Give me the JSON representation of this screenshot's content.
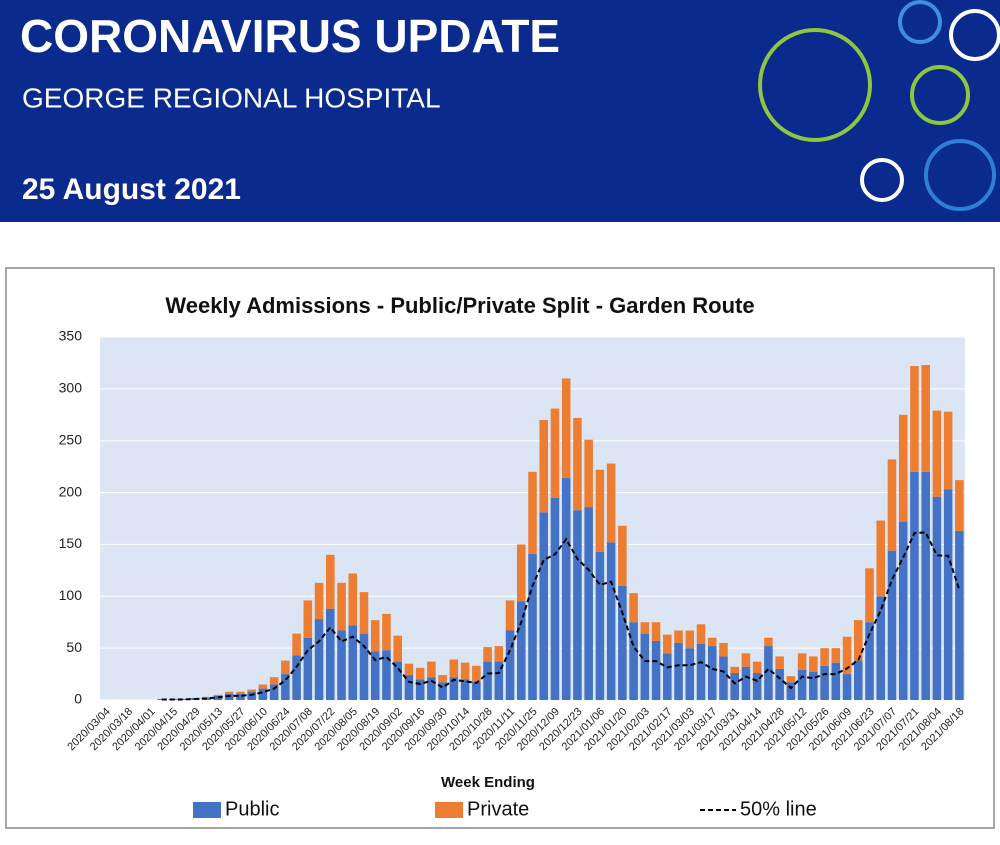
{
  "header": {
    "title": "CORONAVIRUS UPDATE",
    "subtitle": "GEORGE REGIONAL HOSPITAL",
    "date": "25 August 2021"
  },
  "chart_data": {
    "type": "bar",
    "stacked": true,
    "title": "Weekly Admissions - Public/Private Split - Garden Route",
    "x_label": "Week Ending",
    "categories": [
      "2020/03/04",
      null,
      "2020/03/18",
      null,
      "2020/04/01",
      null,
      "2020/04/15",
      null,
      "2020/04/29",
      null,
      "2020/05/13",
      null,
      "2020/05/27",
      null,
      "2020/06/10",
      null,
      "2020/06/24",
      null,
      "2020/07/08",
      null,
      "2020/07/22",
      null,
      "2020/08/05",
      null,
      "2020/08/19",
      null,
      "2020/09/02",
      null,
      "2020/09/16",
      null,
      "2020/09/30",
      null,
      "2020/10/14",
      null,
      "2020/10/28",
      null,
      "2020/11/11",
      null,
      "2020/11/25",
      null,
      "2020/12/09",
      null,
      "2020/12/23",
      null,
      "2021/01/06",
      null,
      "2021/01/20",
      null,
      "2021/02/03",
      null,
      "2021/02/17",
      null,
      "2021/03/03",
      null,
      "2021/03/17",
      null,
      "2021/03/31",
      null,
      "2021/04/14",
      null,
      "2021/04/28",
      null,
      "2021/05/12",
      null,
      "2021/05/26",
      null,
      "2021/06/09",
      null,
      "2021/06/23",
      null,
      "2021/07/07",
      null,
      "2021/07/21",
      null,
      "2021/08/04",
      null,
      "2021/08/18"
    ],
    "series": [
      {
        "name": "Public",
        "color": "#4472c4",
        "values": [
          0,
          0,
          0,
          0,
          0,
          1,
          1,
          1,
          2,
          2,
          4,
          6,
          6,
          8,
          11,
          15,
          25,
          43,
          60,
          78,
          88,
          67,
          72,
          64,
          47,
          48,
          37,
          24,
          20,
          22,
          17,
          22,
          20,
          18,
          37,
          37,
          67,
          95,
          141,
          181,
          195,
          214,
          183,
          186,
          143,
          152,
          110,
          75,
          64,
          57,
          45,
          55,
          50,
          54,
          52,
          42,
          26,
          32,
          26,
          52,
          30,
          17,
          29,
          27,
          33,
          36,
          25,
          38,
          75,
          100,
          144,
          172,
          220,
          220,
          196,
          203,
          163
        ]
      },
      {
        "name": "Private",
        "color": "#ed7d31",
        "values": [
          0,
          0,
          0,
          0,
          0,
          0,
          0,
          0,
          0,
          1,
          1,
          2,
          2,
          2,
          4,
          7,
          13,
          21,
          36,
          35,
          52,
          46,
          50,
          40,
          30,
          35,
          25,
          11,
          11,
          15,
          7,
          17,
          16,
          15,
          14,
          15,
          29,
          55,
          79,
          89,
          86,
          96,
          89,
          65,
          79,
          76,
          58,
          28,
          11,
          18,
          18,
          12,
          17,
          19,
          8,
          13,
          6,
          13,
          11,
          8,
          12,
          6,
          16,
          15,
          17,
          14,
          36,
          39,
          52,
          73,
          88,
          103,
          102,
          103,
          83,
          75,
          49
        ]
      },
      {
        "name": "50% line",
        "type": "line",
        "color": "#000000",
        "dashed": true,
        "values": [
          null,
          null,
          null,
          null,
          null,
          0.5,
          0.5,
          0.5,
          1,
          1.5,
          2.5,
          4,
          4,
          5,
          7.5,
          11,
          19,
          32,
          48,
          56.5,
          70,
          56.5,
          61,
          52,
          38.5,
          41.5,
          31,
          17.5,
          15.5,
          18.5,
          12,
          19.5,
          18,
          16.5,
          25.5,
          26,
          48,
          75,
          110,
          135,
          140.5,
          155,
          136,
          125.5,
          111,
          114,
          84,
          51.5,
          37.5,
          37.5,
          31.5,
          33.5,
          33.5,
          36.5,
          30,
          27.5,
          16,
          22.5,
          18.5,
          30,
          21,
          11.5,
          22.5,
          21,
          25,
          25,
          30.5,
          38.5,
          63.5,
          86.5,
          116,
          137.5,
          161,
          161.5,
          139.5,
          139,
          106
        ]
      }
    ],
    "ylim": [
      0,
      350
    ],
    "yticks": [
      0,
      50,
      100,
      150,
      200,
      250,
      300,
      350
    ],
    "grid": true
  }
}
